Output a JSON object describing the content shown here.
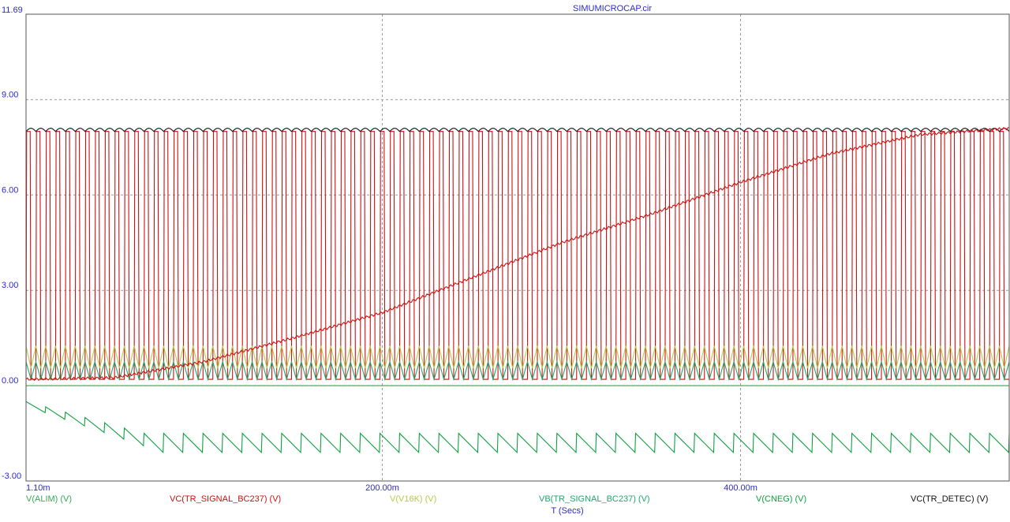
{
  "chart_data": {
    "type": "line",
    "title": "SIMUMICROCAP.cir",
    "xlabel": "T (Secs)",
    "xlim": [
      0.0011,
      0.55
    ],
    "ylim": [
      -3.0,
      11.69
    ],
    "grid": true,
    "x_ticks": [
      {
        "value": 0.0011,
        "label": "1.10m"
      },
      {
        "value": 0.2,
        "label": "200.00m"
      },
      {
        "value": 0.4,
        "label": "400.00m"
      }
    ],
    "y_ticks": [
      {
        "value": 11.69,
        "label": "11.69"
      },
      {
        "value": 9.0,
        "label": "9.00"
      },
      {
        "value": 6.0,
        "label": "6.00"
      },
      {
        "value": 3.0,
        "label": "3.00"
      },
      {
        "value": 0.0,
        "label": "0.00"
      },
      {
        "value": -3.0,
        "label": "-3.00"
      }
    ],
    "legend_placement": "bottom",
    "series": [
      {
        "name": "V(ALIM) (V)",
        "color": "#33aa55",
        "kind": "flat",
        "level": 0.0
      },
      {
        "name": "VC(TR_SIGNAL_BC237) (V)",
        "color": "#cc1111",
        "kind": "square",
        "low": 0.2,
        "high": 8.0,
        "cycles": 100
      },
      {
        "name": "V(V16K) (V)",
        "color": "#b8c94a",
        "kind": "triangle",
        "low": 0.55,
        "high": 1.25,
        "cycles": 100
      },
      {
        "name": "VB(TR_SIGNAL_BC237) (V)",
        "color": "#1ea86c",
        "kind": "triangle",
        "low": 0.2,
        "high": 0.75,
        "cycles": 100
      },
      {
        "name": "V(CNEG) (V)",
        "color": "#11a040",
        "kind": "sawtooth",
        "start": -0.5,
        "settle_low": -2.1,
        "settle_high": -1.5,
        "cycles": 50
      },
      {
        "name": "VC(TR_DETEC) (V)",
        "color": "#111111",
        "kind": "ripple",
        "level": 8.05,
        "amplitude": 0.1,
        "cycles": 100
      },
      {
        "name": "",
        "color": "#cc1111",
        "kind": "rise",
        "x": [
          0.0011,
          0.05,
          0.1,
          0.15,
          0.2,
          0.25,
          0.3,
          0.35,
          0.4,
          0.45,
          0.5,
          0.55
        ],
        "y": [
          0.2,
          0.25,
          0.75,
          1.5,
          2.3,
          3.4,
          4.5,
          5.4,
          6.4,
          7.3,
          7.9,
          8.1
        ]
      }
    ]
  }
}
